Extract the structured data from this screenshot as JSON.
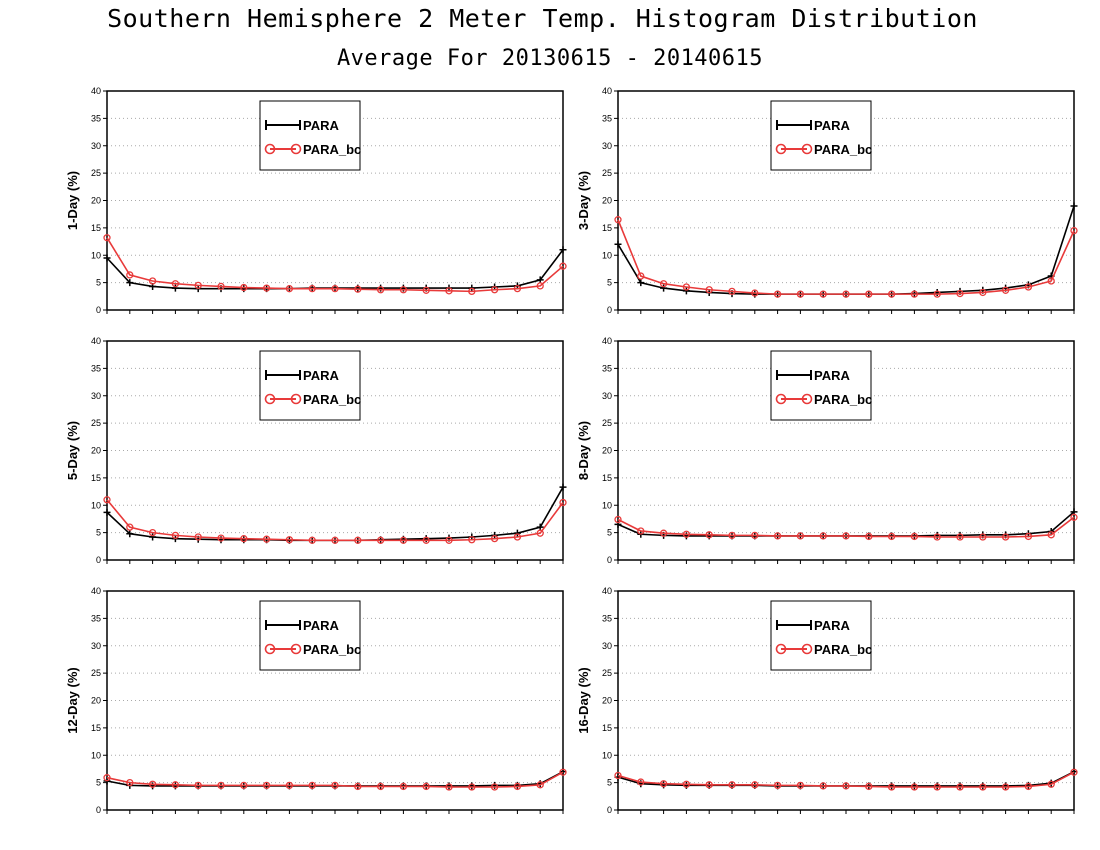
{
  "header": {
    "title": "Southern Hemisphere 2 Meter Temp. Histogram Distribution",
    "subtitle": "Average For 20130615 - 20140615"
  },
  "colors": {
    "para": "#000000",
    "para_bc": "#e83a3a",
    "grid": "#aaaaaa"
  },
  "chart_data": [
    {
      "type": "line",
      "ylabel": "1-Day (%)",
      "ylim": [
        0,
        40
      ],
      "yticks": [
        0,
        5,
        10,
        15,
        20,
        25,
        30,
        35,
        40
      ],
      "grid": true,
      "legend": "top-center",
      "x": [
        1,
        2,
        3,
        4,
        5,
        6,
        7,
        8,
        9,
        10,
        11,
        12,
        13,
        14,
        15,
        16,
        17,
        18,
        19,
        20,
        21
      ],
      "series": [
        {
          "name": "PARA",
          "values": [
            9.5,
            5.0,
            4.3,
            4.0,
            3.9,
            3.9,
            3.9,
            3.9,
            3.9,
            4.0,
            4.0,
            4.0,
            4.0,
            4.0,
            4.0,
            4.0,
            4.0,
            4.2,
            4.4,
            5.5,
            11.0
          ]
        },
        {
          "name": "PARA_bc",
          "values": [
            13.2,
            6.4,
            5.3,
            4.8,
            4.5,
            4.3,
            4.1,
            4.0,
            3.9,
            3.9,
            3.9,
            3.8,
            3.7,
            3.7,
            3.6,
            3.5,
            3.4,
            3.7,
            3.9,
            4.4,
            8.0
          ]
        }
      ]
    },
    {
      "type": "line",
      "ylabel": "3-Day (%)",
      "ylim": [
        0,
        40
      ],
      "yticks": [
        0,
        5,
        10,
        15,
        20,
        25,
        30,
        35,
        40
      ],
      "grid": true,
      "legend": "top-center",
      "x": [
        1,
        2,
        3,
        4,
        5,
        6,
        7,
        8,
        9,
        10,
        11,
        12,
        13,
        14,
        15,
        16,
        17,
        18,
        19,
        20,
        21
      ],
      "series": [
        {
          "name": "PARA",
          "values": [
            12.0,
            5.0,
            4.0,
            3.5,
            3.2,
            3.0,
            2.9,
            2.9,
            2.9,
            2.9,
            2.9,
            2.9,
            2.9,
            3.0,
            3.2,
            3.4,
            3.6,
            4.0,
            4.6,
            6.2,
            19.0
          ]
        },
        {
          "name": "PARA_bc",
          "values": [
            16.5,
            6.2,
            4.8,
            4.2,
            3.7,
            3.4,
            3.1,
            2.9,
            2.9,
            2.9,
            2.9,
            2.9,
            2.9,
            2.9,
            2.9,
            3.0,
            3.2,
            3.6,
            4.2,
            5.3,
            14.5
          ]
        }
      ]
    },
    {
      "type": "line",
      "ylabel": "5-Day (%)",
      "ylim": [
        0,
        40
      ],
      "yticks": [
        0,
        5,
        10,
        15,
        20,
        25,
        30,
        35,
        40
      ],
      "grid": true,
      "legend": "top-center",
      "x": [
        1,
        2,
        3,
        4,
        5,
        6,
        7,
        8,
        9,
        10,
        11,
        12,
        13,
        14,
        15,
        16,
        17,
        18,
        19,
        20,
        21
      ],
      "series": [
        {
          "name": "PARA",
          "values": [
            8.7,
            4.8,
            4.2,
            3.9,
            3.8,
            3.7,
            3.7,
            3.7,
            3.6,
            3.6,
            3.6,
            3.6,
            3.7,
            3.8,
            3.9,
            4.0,
            4.2,
            4.5,
            4.9,
            6.0,
            13.3
          ]
        },
        {
          "name": "PARA_bc",
          "values": [
            11.0,
            6.0,
            5.0,
            4.5,
            4.2,
            4.0,
            3.9,
            3.8,
            3.7,
            3.6,
            3.6,
            3.6,
            3.6,
            3.6,
            3.6,
            3.6,
            3.7,
            3.9,
            4.2,
            4.9,
            10.5
          ]
        }
      ]
    },
    {
      "type": "line",
      "ylabel": "8-Day (%)",
      "ylim": [
        0,
        40
      ],
      "yticks": [
        0,
        5,
        10,
        15,
        20,
        25,
        30,
        35,
        40
      ],
      "grid": true,
      "legend": "top-center",
      "x": [
        1,
        2,
        3,
        4,
        5,
        6,
        7,
        8,
        9,
        10,
        11,
        12,
        13,
        14,
        15,
        16,
        17,
        18,
        19,
        20,
        21
      ],
      "series": [
        {
          "name": "PARA",
          "values": [
            6.5,
            4.7,
            4.5,
            4.4,
            4.4,
            4.4,
            4.4,
            4.4,
            4.4,
            4.4,
            4.4,
            4.4,
            4.4,
            4.4,
            4.5,
            4.5,
            4.6,
            4.6,
            4.8,
            5.2,
            8.8
          ]
        },
        {
          "name": "PARA_bc",
          "values": [
            7.4,
            5.3,
            4.9,
            4.7,
            4.6,
            4.5,
            4.5,
            4.4,
            4.4,
            4.4,
            4.4,
            4.3,
            4.3,
            4.3,
            4.2,
            4.2,
            4.2,
            4.2,
            4.3,
            4.6,
            7.8
          ]
        }
      ]
    },
    {
      "type": "line",
      "ylabel": "12-Day (%)",
      "ylim": [
        0,
        40
      ],
      "yticks": [
        0,
        5,
        10,
        15,
        20,
        25,
        30,
        35,
        40
      ],
      "grid": true,
      "legend": "top-center",
      "x": [
        1,
        2,
        3,
        4,
        5,
        6,
        7,
        8,
        9,
        10,
        11,
        12,
        13,
        14,
        15,
        16,
        17,
        18,
        19,
        20,
        21
      ],
      "series": [
        {
          "name": "PARA",
          "values": [
            5.3,
            4.5,
            4.4,
            4.4,
            4.4,
            4.4,
            4.4,
            4.4,
            4.4,
            4.4,
            4.4,
            4.4,
            4.4,
            4.4,
            4.4,
            4.4,
            4.4,
            4.5,
            4.5,
            4.8,
            7.0
          ]
        },
        {
          "name": "PARA_bc",
          "values": [
            5.9,
            5.0,
            4.7,
            4.6,
            4.5,
            4.5,
            4.5,
            4.5,
            4.5,
            4.5,
            4.5,
            4.3,
            4.3,
            4.3,
            4.3,
            4.2,
            4.2,
            4.2,
            4.3,
            4.6,
            6.9
          ]
        }
      ]
    },
    {
      "type": "line",
      "ylabel": "16-Day (%)",
      "ylim": [
        0,
        40
      ],
      "yticks": [
        0,
        5,
        10,
        15,
        20,
        25,
        30,
        35,
        40
      ],
      "grid": true,
      "legend": "top-center",
      "x": [
        1,
        2,
        3,
        4,
        5,
        6,
        7,
        8,
        9,
        10,
        11,
        12,
        13,
        14,
        15,
        16,
        17,
        18,
        19,
        20,
        21
      ],
      "series": [
        {
          "name": "PARA",
          "values": [
            6.0,
            4.8,
            4.6,
            4.5,
            4.5,
            4.5,
            4.5,
            4.4,
            4.4,
            4.4,
            4.4,
            4.4,
            4.4,
            4.4,
            4.4,
            4.4,
            4.4,
            4.4,
            4.5,
            4.9,
            7.0
          ]
        },
        {
          "name": "PARA_bc",
          "values": [
            6.3,
            5.1,
            4.8,
            4.7,
            4.6,
            4.6,
            4.6,
            4.5,
            4.5,
            4.4,
            4.4,
            4.3,
            4.2,
            4.2,
            4.2,
            4.2,
            4.2,
            4.2,
            4.3,
            4.7,
            6.9
          ]
        }
      ]
    }
  ]
}
